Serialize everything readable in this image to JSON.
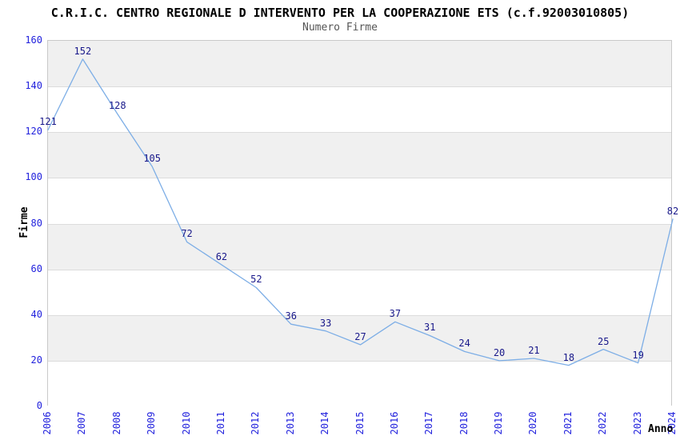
{
  "title": "C.R.I.C. CENTRO REGIONALE D INTERVENTO PER LA COOPERAZIONE ETS (c.f.92003010805)",
  "subtitle": "Numero Firme",
  "chart_data": {
    "type": "line",
    "title": "C.R.I.C. CENTRO REGIONALE D INTERVENTO PER LA COOPERAZIONE ETS (c.f.92003010805)",
    "subtitle": "Numero Firme",
    "xlabel": "Anno",
    "ylabel": "Firme",
    "x": [
      2006,
      2007,
      2008,
      2009,
      2010,
      2011,
      2012,
      2013,
      2014,
      2015,
      2016,
      2017,
      2018,
      2019,
      2020,
      2021,
      2022,
      2023,
      2024
    ],
    "values": [
      121,
      152,
      128,
      105,
      72,
      62,
      52,
      36,
      33,
      27,
      37,
      31,
      24,
      20,
      21,
      18,
      25,
      19,
      82
    ],
    "ylim": [
      0,
      160
    ],
    "ytick_step": 20,
    "yticks": [
      0,
      20,
      40,
      60,
      80,
      100,
      120,
      140,
      160
    ],
    "grid": "alternating-horizontal-bands",
    "legend": "none",
    "point_labels_visible": true
  },
  "colors": {
    "background": "#ffffff",
    "line": "#7daee6",
    "point_label": "#18188a",
    "tick_label": "#2222dd",
    "band_gray": "#f0f0f0",
    "band_white": "#ffffff",
    "plot_border": "#c9c9c9",
    "gridline": "#dcdcdc",
    "title": "#000000",
    "subtitle": "#555555",
    "axis_label": "#000000"
  }
}
